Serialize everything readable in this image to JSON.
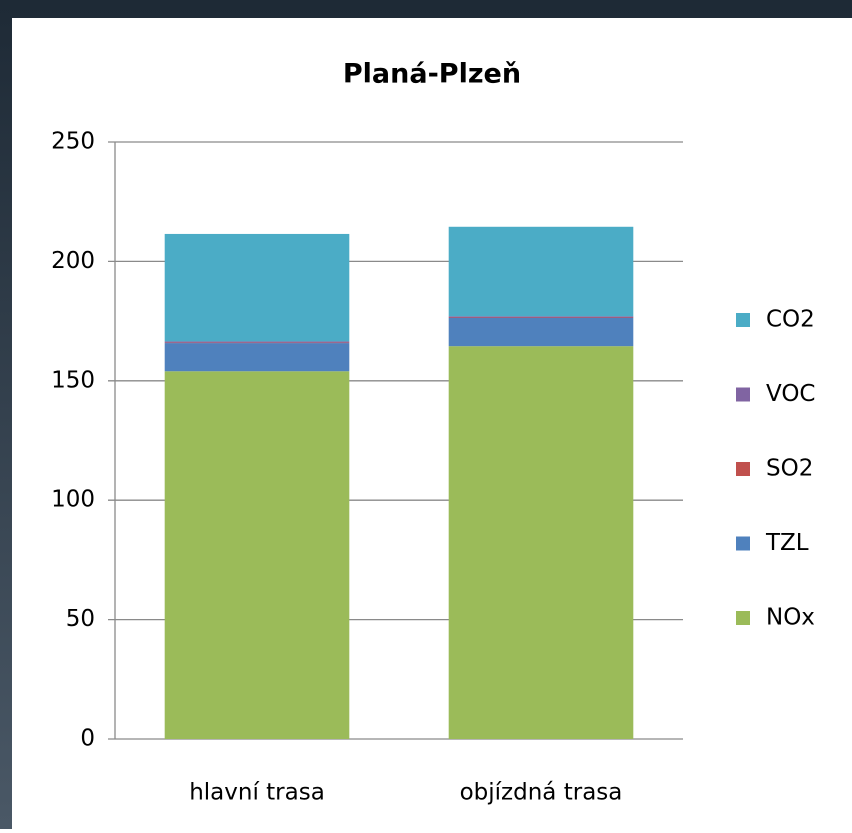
{
  "chart_data": {
    "type": "stacked_bar",
    "title": "Planá-Plzeň",
    "categories": [
      "hlavní trasa",
      "objízdná trasa"
    ],
    "series": [
      {
        "name": "NOx",
        "color": "#9bbb59",
        "values": [
          154,
          164.5
        ]
      },
      {
        "name": "TZL",
        "color": "#4f81bd",
        "values": [
          11.8,
          11.8
        ]
      },
      {
        "name": "SO2",
        "color": "#c0504d",
        "values": [
          0.2,
          0.2
        ]
      },
      {
        "name": "VOC",
        "color": "#8064a2",
        "values": [
          0.5,
          0.5
        ]
      },
      {
        "name": "CO2",
        "color": "#4bacc6",
        "values": [
          45,
          37.5
        ]
      }
    ],
    "ylim": [
      0,
      250
    ],
    "yticks": [
      0,
      50,
      100,
      150,
      200,
      250
    ],
    "grid": true,
    "legend": "right"
  }
}
